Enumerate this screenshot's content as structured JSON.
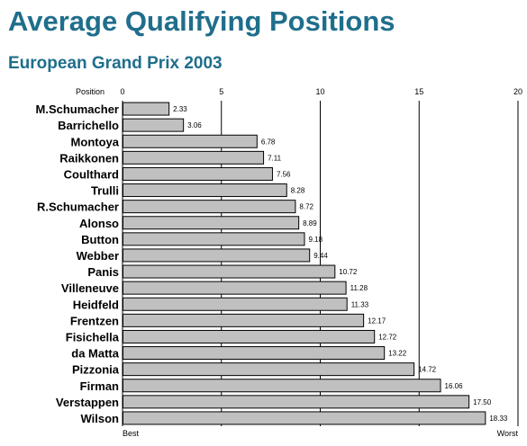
{
  "header": {
    "title": "Average Qualifying Positions",
    "subtitle": "European Grand Prix 2003"
  },
  "chart_data": {
    "type": "bar",
    "orientation": "horizontal",
    "title": "Average Qualifying Positions",
    "subtitle": "European Grand Prix 2003",
    "axis_label": "Position",
    "xlim": [
      0,
      20
    ],
    "ticks": [
      0,
      5,
      10,
      15,
      20
    ],
    "axis_start_label": "Best",
    "axis_end_label": "Worst",
    "grid": true,
    "colors": {
      "bar": "#c0c0c0",
      "bar_border": "#000000",
      "title": "#1f6e8c"
    },
    "categories": [
      "M.Schumacher",
      "Barrichello",
      "Montoya",
      "Raikkonen",
      "Coulthard",
      "Trulli",
      "R.Schumacher",
      "Alonso",
      "Button",
      "Webber",
      "Panis",
      "Villeneuve",
      "Heidfeld",
      "Frentzen",
      "Fisichella",
      "da Matta",
      "Pizzonia",
      "Firman",
      "Verstappen",
      "Wilson"
    ],
    "values": [
      2.33,
      3.06,
      6.78,
      7.11,
      7.56,
      8.28,
      8.72,
      8.89,
      9.18,
      9.44,
      10.72,
      11.28,
      11.33,
      12.17,
      12.72,
      13.22,
      14.72,
      16.06,
      17.5,
      18.33
    ],
    "value_labels": [
      "2.33",
      "3.06",
      "6.78",
      "7.11",
      "7.56",
      "8.28",
      "8.72",
      "8.89",
      "9.18",
      "9.44",
      "10.72",
      "11.28",
      "11.33",
      "12.17",
      "12.72",
      "13.22",
      "14.72",
      "16.06",
      "17.50",
      "18.33"
    ]
  }
}
